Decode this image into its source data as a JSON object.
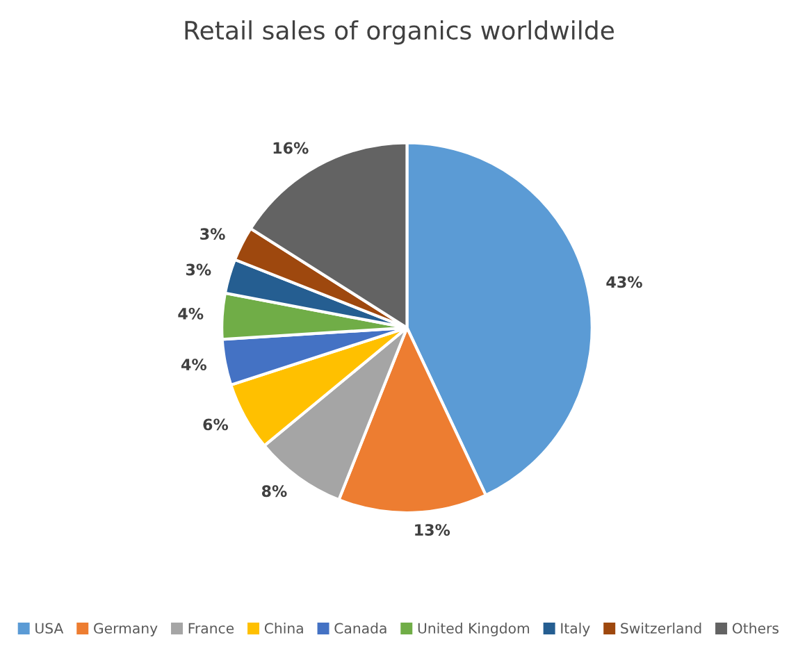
{
  "chart_data": {
    "type": "pie",
    "title": "Retail sales of organics worldwilde",
    "categories": [
      "USA",
      "Germany",
      "France",
      "China",
      "Canada",
      "United Kingdom",
      "Italy",
      "Switzerland",
      "Others"
    ],
    "values": [
      43,
      13,
      8,
      6,
      4,
      4,
      3,
      3,
      16
    ],
    "colors": [
      "#5b9bd5",
      "#ed7d31",
      "#a5a5a5",
      "#ffc000",
      "#4472c4",
      "#70ad47",
      "#255e91",
      "#9e480e",
      "#636363"
    ],
    "value_labels": [
      "43%",
      "13%",
      "8%",
      "6%",
      "4%",
      "4%",
      "3%",
      "3%",
      "16%"
    ],
    "legend": "bottom"
  }
}
